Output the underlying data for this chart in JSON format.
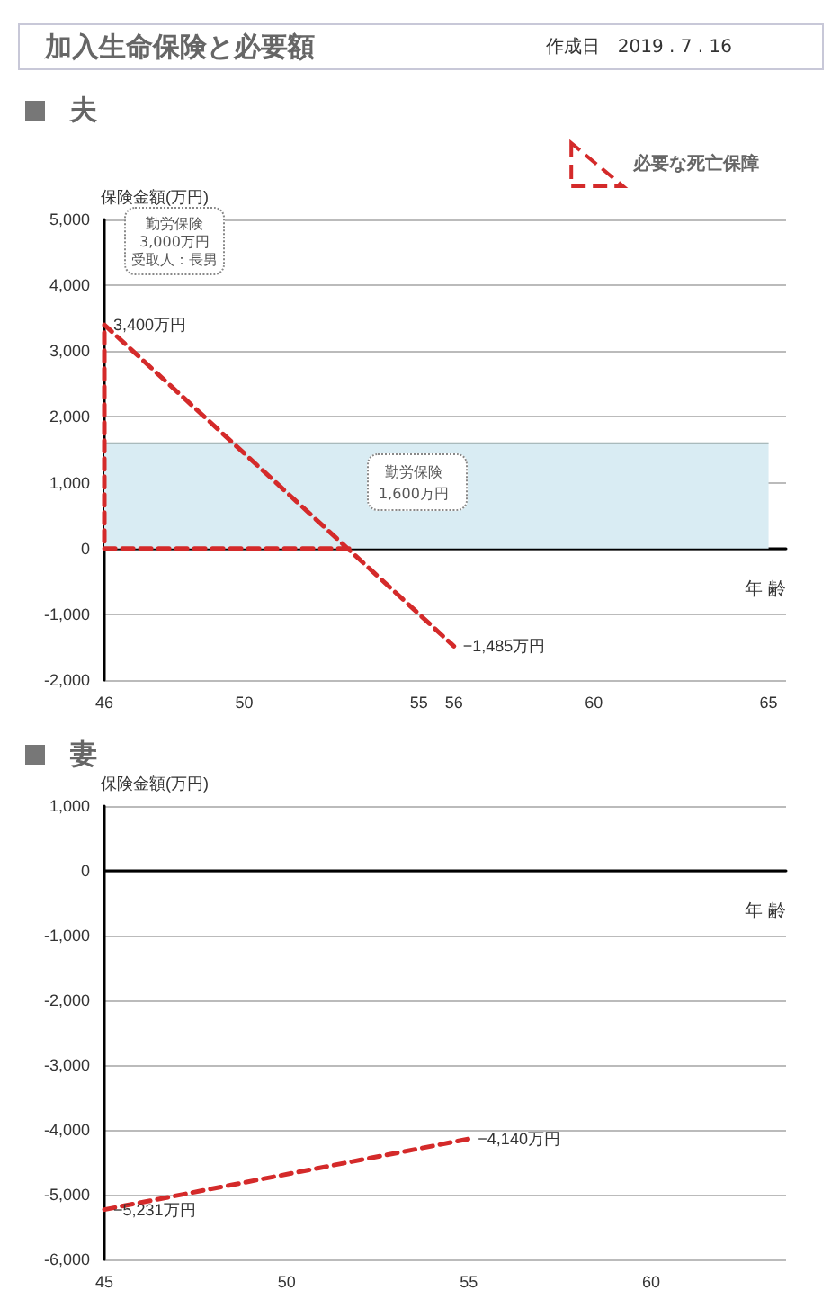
{
  "chart_data": [
    {
      "type": "other",
      "title": "加入生命保険と必要額",
      "subtitle": "作成日　2019 . 7 . 16"
    },
    {
      "type": "line",
      "title": "夫",
      "xlabel": "年 齢",
      "ylabel": "保険金額(万円)",
      "series": [
        {
          "type": "area",
          "color": "#d9ecf3",
          "x": [
            46,
            65
          ],
          "values": [
            1600,
            1600
          ]
        },
        {
          "type": "line",
          "name": "必要な死亡保障",
          "color": "#d42a2a",
          "line_style": "dashed",
          "x": [
            53,
            46,
            46,
            56
          ],
          "values": [
            0,
            0,
            3400,
            -1485
          ],
          "value_labels": [
            null,
            null,
            "3,400万円",
            "−1,485万円"
          ]
        }
      ],
      "annotations": [
        "勤労保険",
        "3,000万円",
        "受取人：長男",
        "勤労保険",
        "1,600万円"
      ],
      "xlim": [
        46,
        65.5
      ],
      "xticks": [
        46,
        50,
        55,
        56,
        60,
        65
      ],
      "ylim": [
        -2000,
        5000
      ],
      "yticks": [
        {
          "value": -2000,
          "label": "-2,000"
        },
        {
          "value": -1000,
          "label": "-1,000"
        },
        0,
        {
          "value": 1000,
          "label": "1,000"
        },
        {
          "value": 2000,
          "label": "2,000"
        },
        {
          "value": 3000,
          "label": "3,000"
        },
        {
          "value": 4000,
          "label": "4,000"
        },
        {
          "value": 5000,
          "label": "5,000"
        }
      ],
      "grid": "y",
      "legend": "top right",
      "marker": "none"
    },
    {
      "type": "line",
      "title": "妻",
      "xlabel": "年 齢",
      "ylabel": "保険金額(万円)",
      "series": [
        {
          "type": "line",
          "color": "#d42a2a",
          "line_style": "dashed",
          "x": [
            45,
            55
          ],
          "values": [
            -5231,
            -4140
          ],
          "value_labels": [
            "−5,231万円",
            "−4,140万円"
          ]
        }
      ],
      "xlim": [
        45,
        63.7
      ],
      "xticks": [
        45,
        50,
        55,
        60
      ],
      "ylim": [
        -6000,
        1000
      ],
      "yticks": [
        {
          "value": -6000,
          "label": "-6,000"
        },
        {
          "value": -5000,
          "label": "-5,000"
        },
        {
          "value": -4000,
          "label": "-4,000"
        },
        {
          "value": -3000,
          "label": "-3,000"
        },
        {
          "value": -2000,
          "label": "-2,000"
        },
        {
          "value": -1000,
          "label": "-1,000"
        },
        0,
        {
          "value": 1000,
          "label": "1,000"
        }
      ],
      "grid": "y",
      "legend": false,
      "marker": "none"
    }
  ]
}
